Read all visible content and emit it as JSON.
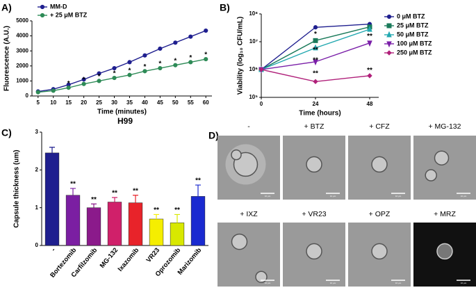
{
  "chart_data": [
    {
      "type": "line",
      "panel": "A)",
      "xlabel": "Time  (minutes)",
      "ylabel": "Fluorescence (A.U.)",
      "x": [
        5,
        10,
        15,
        20,
        25,
        30,
        35,
        40,
        45,
        50,
        55,
        60
      ],
      "series": [
        {
          "name": "MM-D",
          "color": "#1f1f8f",
          "marker": "circle",
          "values": [
            300,
            450,
            750,
            1100,
            1500,
            1850,
            2250,
            2700,
            3150,
            3550,
            3950,
            4350
          ]
        },
        {
          "name": "+ 25 μM BTZ",
          "color": "#2e8b57",
          "marker": "circle",
          "values": [
            250,
            350,
            550,
            800,
            1000,
            1200,
            1400,
            1650,
            1850,
            2050,
            2250,
            2450
          ]
        }
      ],
      "annotations": [
        {
          "text": "*",
          "x": 15,
          "y": 550
        },
        {
          "text": "*",
          "x": 20,
          "y": 800
        },
        {
          "text": "*",
          "x": 25,
          "y": 1000
        },
        {
          "text": "*",
          "x": 30,
          "y": 1200
        },
        {
          "text": "*",
          "x": 35,
          "y": 1400
        },
        {
          "text": "*",
          "x": 40,
          "y": 1650
        },
        {
          "text": "*",
          "x": 45,
          "y": 1850
        },
        {
          "text": "*",
          "x": 50,
          "y": 2050
        },
        {
          "text": "*",
          "x": 55,
          "y": 2250
        },
        {
          "text": "*",
          "x": 60,
          "y": 2450
        }
      ],
      "xlim": [
        3,
        62
      ],
      "xticks": [
        5,
        10,
        15,
        20,
        25,
        30,
        35,
        40,
        45,
        50,
        55,
        60
      ],
      "ylim": [
        0,
        5000
      ],
      "yticks": [
        0,
        1000,
        2000,
        3000,
        4000,
        5000
      ],
      "legend": "upper left"
    },
    {
      "type": "line",
      "panel": "B)",
      "xlabel": "Time (hours)",
      "ylabel": "Viability (log₁₀ CFU/mL)",
      "log_y": true,
      "x": [
        0,
        24,
        48
      ],
      "series": [
        {
          "name": "0 μM  BTZ",
          "color": "#1f1f8f",
          "marker": "circle",
          "values": [
            1000000,
            33000000,
            43000000
          ]
        },
        {
          "name": "25 μM  BTZ",
          "color": "#1a7a5a",
          "marker": "square",
          "values": [
            1000000,
            11000000,
            34000000
          ]
        },
        {
          "name": "50 μM  BTZ",
          "color": "#22a8b0",
          "marker": "triangle",
          "values": [
            1000000,
            6000000,
            28000000
          ]
        },
        {
          "name": "100 μM  BTZ",
          "color": "#7a1fa8",
          "marker": "down",
          "values": [
            1000000,
            1900000,
            9000000
          ]
        },
        {
          "name": "250 μM  BTZ",
          "color": "#b0207a",
          "marker": "diamond",
          "values": [
            1000000,
            370000,
            600000
          ]
        }
      ],
      "annotations": [
        {
          "text": "*",
          "x": 24,
          "y": 13000000
        },
        {
          "text": "**",
          "x": 24,
          "y": 3600000
        },
        {
          "text": "**",
          "x": 24,
          "y": 1500000
        },
        {
          "text": "**",
          "x": 24,
          "y": 500000
        },
        {
          "text": "**",
          "x": 48,
          "y": 11000000
        },
        {
          "text": "**",
          "x": 48,
          "y": 650000
        }
      ],
      "xlim": [
        0,
        52
      ],
      "xticks": [
        0,
        24,
        48
      ],
      "ylim": [
        100000,
        100000000
      ],
      "yticks": [
        {
          "value": 100000,
          "label": "10⁵"
        },
        {
          "value": 1000000,
          "label": "10⁶"
        },
        {
          "value": 10000000,
          "label": "10⁷"
        },
        {
          "value": 100000000,
          "label": "10⁸"
        }
      ],
      "legend": "right"
    },
    {
      "type": "bar",
      "panel": "C)",
      "title": "H99",
      "ylabel": "Capsule thickness  (um)",
      "categories": [
        "-",
        "Bortezomib",
        "Carfilzomib",
        "MG-132",
        "Ixazomib",
        "VR23",
        "Oprozomib",
        "Marizomib"
      ],
      "values": [
        2.45,
        1.33,
        1.0,
        1.15,
        1.13,
        0.7,
        0.6,
        1.3
      ],
      "errors": [
        0.15,
        0.18,
        0.1,
        0.12,
        0.2,
        0.12,
        0.22,
        0.3
      ],
      "colors": [
        "#1f1f8f",
        "#7b1fa2",
        "#8b1a8b",
        "#d0206a",
        "#e8232a",
        "#f5ee00",
        "#d8e800",
        "#1a2ad0"
      ],
      "significance": [
        null,
        "**",
        "**",
        "**",
        "**",
        "**",
        "**",
        "**"
      ],
      "ylim": [
        0,
        3
      ],
      "yticks": [
        0,
        1,
        2,
        3
      ]
    }
  ],
  "images": {
    "panel": "D)",
    "scale_bar": "10 μm",
    "labels": [
      "-",
      "+ BTZ",
      "+ CFZ",
      "+ MG-132",
      "+ IXZ",
      "+ VR23",
      "+ OPZ",
      "+ MRZ"
    ]
  }
}
